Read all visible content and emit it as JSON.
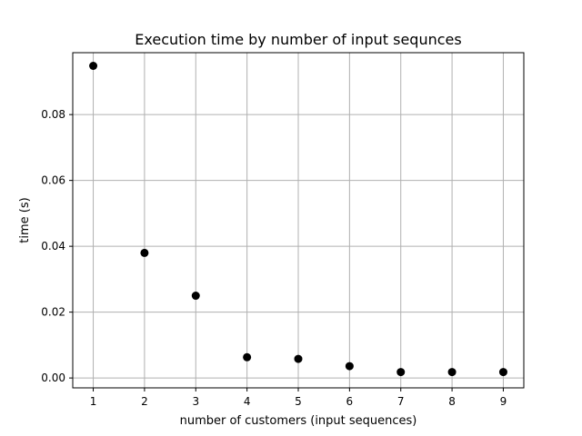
{
  "chart_data": {
    "type": "scatter",
    "title": "Execution time by number of input sequnces",
    "xlabel": "number of customers (input sequences)",
    "ylabel": "time (s)",
    "x": [
      1,
      2,
      3,
      4,
      5,
      6,
      7,
      8,
      9
    ],
    "y": [
      0.0948,
      0.038,
      0.025,
      0.0063,
      0.0058,
      0.0036,
      0.0018,
      0.0018,
      0.0018
    ],
    "xlim": [
      0.6,
      9.4
    ],
    "ylim": [
      -0.003,
      0.0988
    ],
    "xticks": [
      1,
      2,
      3,
      4,
      5,
      6,
      7,
      8,
      9
    ],
    "xtick_labels": [
      "1",
      "2",
      "3",
      "4",
      "5",
      "6",
      "7",
      "8",
      "9"
    ],
    "yticks": [
      0.0,
      0.02,
      0.04,
      0.06,
      0.08
    ],
    "ytick_labels": [
      "0.00",
      "0.02",
      "0.04",
      "0.06",
      "0.08"
    ],
    "grid": true,
    "marker_color": "#000000",
    "grid_color": "#b0b0b0"
  }
}
